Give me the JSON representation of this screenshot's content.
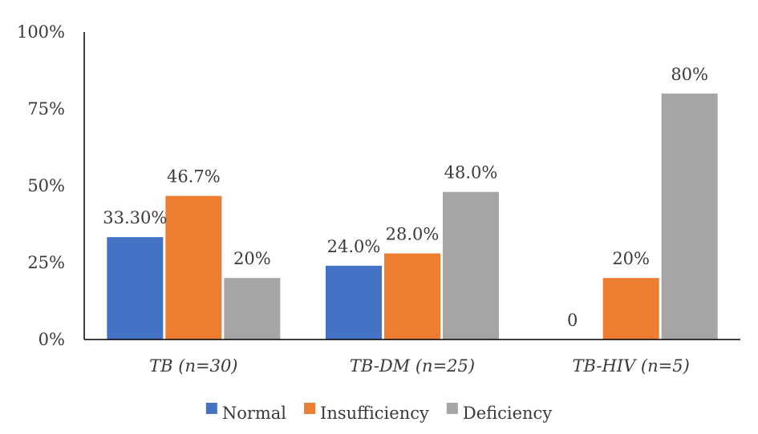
{
  "chart_data": {
    "type": "bar",
    "categories": [
      "TB (n=30)",
      "TB-DM (n=25)",
      "TB-HIV (n=5)"
    ],
    "series": [
      {
        "name": "Normal",
        "color": "#4472C4",
        "values": [
          33.3,
          24.0,
          0
        ],
        "labels": [
          "33.30%",
          "24.0%",
          "0"
        ]
      },
      {
        "name": "Insufficiency",
        "color": "#ED7D31",
        "values": [
          46.7,
          28.0,
          20
        ],
        "labels": [
          "46.7%",
          "28.0%",
          "20%"
        ]
      },
      {
        "name": "Deficiency",
        "color": "#A5A5A5",
        "values": [
          20,
          48.0,
          80
        ],
        "labels": [
          "20%",
          "48.0%",
          "80%"
        ]
      }
    ],
    "ylim": [
      0,
      100
    ],
    "yticks": [
      0,
      25,
      50,
      75,
      100
    ],
    "ytick_labels": [
      "0%",
      "25%",
      "50%",
      "75%",
      "100%"
    ],
    "legend_position": "bottom",
    "grid": false,
    "title": "",
    "xlabel": "",
    "ylabel": ""
  }
}
